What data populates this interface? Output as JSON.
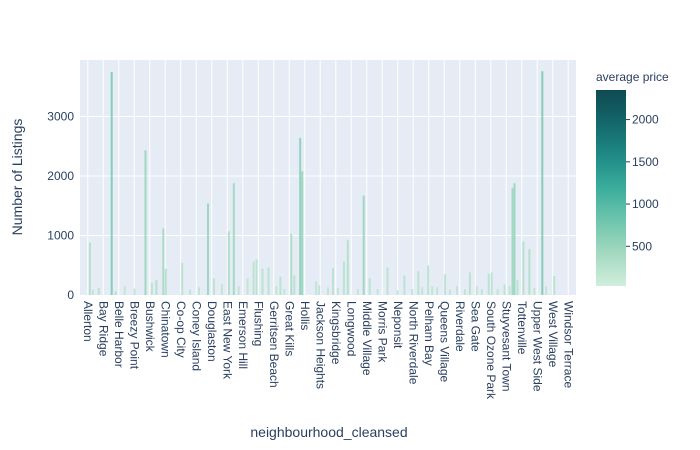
{
  "chart_data": {
    "type": "bar",
    "xlabel": "neighbourhood_cleansed",
    "ylabel": "Number of Listings",
    "ylim": [
      0,
      3950
    ],
    "yticks": [
      0,
      1000,
      2000,
      3000
    ],
    "grid": true,
    "x_tick_labels": [
      "Allerton",
      "Bay Ridge",
      "Belle Harbor",
      "Breezy Point",
      "Bushwick",
      "Chinatown",
      "Co-op City",
      "Coney Island",
      "Douglaston",
      "East New York",
      "Emerson Hill",
      "Flushing",
      "Gerritsen Beach",
      "Great Kills",
      "Hollis",
      "Jackson Heights",
      "Kingsbridge",
      "Longwood",
      "Middle Village",
      "Morris Park",
      "Neponsit",
      "North Riverdale",
      "Pelham Bay",
      "Queens Village",
      "Riverdale",
      "Sea Gate",
      "South Ozone Park",
      "Stuyvesant Town",
      "Tottenville",
      "Upper West Side",
      "West Village",
      "Windsor Terrace"
    ],
    "bars": [
      {
        "x": 2,
        "y": 880,
        "c": 300
      },
      {
        "x": 2.6,
        "y": 90,
        "c": 200
      },
      {
        "x": 3.8,
        "y": 120,
        "c": 250
      },
      {
        "x": 6.4,
        "y": 3750,
        "c": 700
      },
      {
        "x": 7.2,
        "y": 60,
        "c": 300
      },
      {
        "x": 9.0,
        "y": 150,
        "c": 200
      },
      {
        "x": 11.0,
        "y": 110,
        "c": 200
      },
      {
        "x": 13.2,
        "y": 2430,
        "c": 500
      },
      {
        "x": 14.5,
        "y": 200,
        "c": 250
      },
      {
        "x": 15.4,
        "y": 250,
        "c": 300
      },
      {
        "x": 16.8,
        "y": 1120,
        "c": 400
      },
      {
        "x": 17.3,
        "y": 440,
        "c": 300
      },
      {
        "x": 20.6,
        "y": 540,
        "c": 250
      },
      {
        "x": 22.2,
        "y": 90,
        "c": 200
      },
      {
        "x": 24.0,
        "y": 130,
        "c": 200
      },
      {
        "x": 25.8,
        "y": 1540,
        "c": 500
      },
      {
        "x": 27.0,
        "y": 280,
        "c": 250
      },
      {
        "x": 28.6,
        "y": 180,
        "c": 200
      },
      {
        "x": 30.0,
        "y": 1070,
        "c": 350
      },
      {
        "x": 31.0,
        "y": 1880,
        "c": 450
      },
      {
        "x": 32.0,
        "y": 150,
        "c": 200
      },
      {
        "x": 33.8,
        "y": 280,
        "c": 200
      },
      {
        "x": 35.0,
        "y": 560,
        "c": 250
      },
      {
        "x": 35.6,
        "y": 600,
        "c": 250
      },
      {
        "x": 36.8,
        "y": 440,
        "c": 250
      },
      {
        "x": 38.0,
        "y": 460,
        "c": 250
      },
      {
        "x": 39.6,
        "y": 150,
        "c": 200
      },
      {
        "x": 40.4,
        "y": 310,
        "c": 250
      },
      {
        "x": 41.2,
        "y": 100,
        "c": 200
      },
      {
        "x": 42.6,
        "y": 1030,
        "c": 350
      },
      {
        "x": 43.2,
        "y": 330,
        "c": 250
      },
      {
        "x": 44.4,
        "y": 2640,
        "c": 600
      },
      {
        "x": 44.8,
        "y": 2080,
        "c": 500
      },
      {
        "x": 47.6,
        "y": 230,
        "c": 200
      },
      {
        "x": 48.2,
        "y": 160,
        "c": 200
      },
      {
        "x": 50.0,
        "y": 130,
        "c": 200
      },
      {
        "x": 51.0,
        "y": 450,
        "c": 250
      },
      {
        "x": 52.0,
        "y": 120,
        "c": 200
      },
      {
        "x": 53.2,
        "y": 560,
        "c": 250
      },
      {
        "x": 54.0,
        "y": 920,
        "c": 300
      },
      {
        "x": 56.0,
        "y": 100,
        "c": 200
      },
      {
        "x": 57.2,
        "y": 1670,
        "c": 500
      },
      {
        "x": 58.4,
        "y": 280,
        "c": 250
      },
      {
        "x": 60.0,
        "y": 100,
        "c": 200
      },
      {
        "x": 62.0,
        "y": 460,
        "c": 250
      },
      {
        "x": 64.0,
        "y": 80,
        "c": 200
      },
      {
        "x": 65.4,
        "y": 330,
        "c": 250
      },
      {
        "x": 67.0,
        "y": 100,
        "c": 200
      },
      {
        "x": 68.2,
        "y": 400,
        "c": 250
      },
      {
        "x": 69.0,
        "y": 130,
        "c": 200
      },
      {
        "x": 70.2,
        "y": 500,
        "c": 250
      },
      {
        "x": 71.0,
        "y": 150,
        "c": 200
      },
      {
        "x": 72.0,
        "y": 130,
        "c": 200
      },
      {
        "x": 73.6,
        "y": 350,
        "c": 250
      },
      {
        "x": 74.6,
        "y": 90,
        "c": 200
      },
      {
        "x": 76.0,
        "y": 150,
        "c": 200
      },
      {
        "x": 77.6,
        "y": 100,
        "c": 200
      },
      {
        "x": 78.6,
        "y": 380,
        "c": 250
      },
      {
        "x": 80.0,
        "y": 150,
        "c": 200
      },
      {
        "x": 81.0,
        "y": 100,
        "c": 200
      },
      {
        "x": 82.4,
        "y": 360,
        "c": 250
      },
      {
        "x": 83.0,
        "y": 380,
        "c": 250
      },
      {
        "x": 84.2,
        "y": 100,
        "c": 200
      },
      {
        "x": 85.6,
        "y": 180,
        "c": 250
      },
      {
        "x": 86.6,
        "y": 150,
        "c": 200
      },
      {
        "x": 87.2,
        "y": 1800,
        "c": 450
      },
      {
        "x": 87.6,
        "y": 1880,
        "c": 500
      },
      {
        "x": 88.2,
        "y": 250,
        "c": 250
      },
      {
        "x": 89.4,
        "y": 900,
        "c": 300
      },
      {
        "x": 90.6,
        "y": 770,
        "c": 300
      },
      {
        "x": 91.6,
        "y": 120,
        "c": 200
      },
      {
        "x": 93.2,
        "y": 3760,
        "c": 700
      },
      {
        "x": 94.0,
        "y": 150,
        "c": 200
      },
      {
        "x": 95.6,
        "y": 320,
        "c": 250
      }
    ],
    "colorbar": {
      "title": "average price",
      "ticks": [
        500,
        1000,
        1500,
        2000
      ],
      "range": [
        30,
        2350
      ],
      "colors": [
        "#d1eedd",
        "#a3d9c0",
        "#6fc5ad",
        "#3aad9c",
        "#1f8a85",
        "#14676a",
        "#0f4a52"
      ]
    }
  }
}
